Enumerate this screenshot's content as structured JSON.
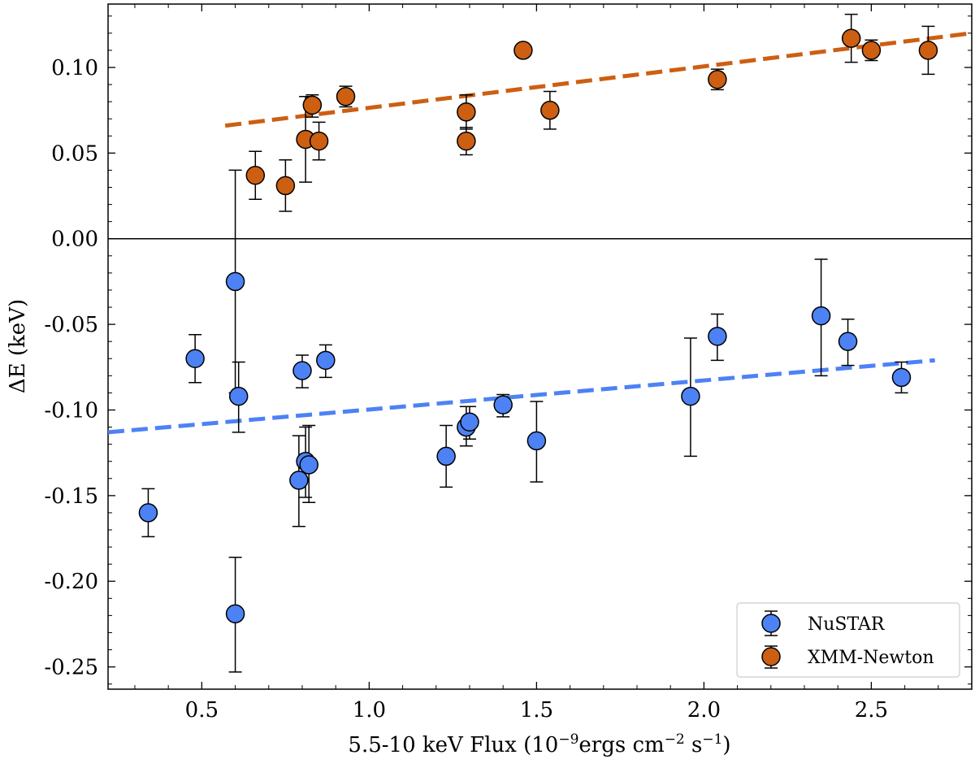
{
  "chart_data": {
    "type": "scatter",
    "title": "",
    "xlabel": "5.5-10 keV Flux (10",
    "xlabel_exp1": "−9",
    "xlabel_mid": "ergs cm",
    "xlabel_exp2": "−2",
    "xlabel_mid2": " s",
    "xlabel_exp3": "−1",
    "xlabel_end": ")",
    "ylabel": "ΔE (keV)",
    "xlim": [
      0.22,
      2.8
    ],
    "ylim": [
      -0.263,
      0.137
    ],
    "xticks": [
      0.5,
      1.0,
      1.5,
      2.0,
      2.5
    ],
    "xtick_labels": [
      "0.5",
      "1.0",
      "1.5",
      "2.0",
      "2.5"
    ],
    "yticks": [
      0.1,
      0.05,
      0.0,
      -0.05,
      -0.1,
      -0.15,
      -0.2,
      -0.25
    ],
    "ytick_labels": [
      "0.10",
      "0.05",
      "0.00",
      "-0.05",
      "-0.10",
      "-0.15",
      "-0.20",
      "-0.25"
    ],
    "zero_line": 0.0,
    "legend_position": "bottom-right",
    "series": [
      {
        "name": "NuSTAR",
        "color": "#4d82f5",
        "x": [
          0.34,
          0.48,
          0.6,
          0.61,
          0.6,
          0.79,
          0.8,
          0.81,
          0.82,
          0.87,
          1.23,
          1.29,
          1.3,
          1.4,
          1.5,
          1.96,
          2.04,
          2.35,
          2.43,
          2.59
        ],
        "y": [
          -0.16,
          -0.07,
          -0.025,
          -0.092,
          -0.219,
          -0.141,
          -0.077,
          -0.13,
          -0.132,
          -0.071,
          -0.127,
          -0.11,
          -0.107,
          -0.097,
          -0.118,
          -0.092,
          -0.057,
          -0.045,
          -0.06,
          -0.081
        ],
        "yerr_low": [
          0.014,
          0.014,
          0.065,
          0.021,
          0.034,
          0.027,
          0.01,
          0.021,
          0.022,
          0.01,
          0.018,
          0.011,
          0.01,
          0.007,
          0.024,
          0.035,
          0.014,
          0.035,
          0.014,
          0.009
        ],
        "yerr_high": [
          0.014,
          0.014,
          0.065,
          0.02,
          0.033,
          0.026,
          0.009,
          0.02,
          0.023,
          0.009,
          0.018,
          0.012,
          0.009,
          0.006,
          0.023,
          0.034,
          0.013,
          0.033,
          0.013,
          0.009
        ]
      },
      {
        "name": "XMM-Newton",
        "color": "#cc5f12",
        "x": [
          0.66,
          0.75,
          0.81,
          0.83,
          0.85,
          0.93,
          1.29,
          1.29,
          1.46,
          1.54,
          2.04,
          2.44,
          2.5,
          2.67
        ],
        "y": [
          0.037,
          0.031,
          0.058,
          0.078,
          0.057,
          0.083,
          0.057,
          0.074,
          0.11,
          0.075,
          0.093,
          0.117,
          0.11,
          0.11
        ],
        "yerr_low": [
          0.014,
          0.015,
          0.025,
          0.007,
          0.011,
          0.006,
          0.008,
          0.01,
          0.003,
          0.011,
          0.006,
          0.014,
          0.006,
          0.014
        ],
        "yerr_high": [
          0.014,
          0.015,
          0.025,
          0.006,
          0.011,
          0.006,
          0.008,
          0.01,
          0.003,
          0.011,
          0.006,
          0.014,
          0.006,
          0.014
        ]
      }
    ],
    "fit_lines": [
      {
        "name": "NuSTAR fit",
        "color": "#4d82f5",
        "x": [
          0.22,
          2.69
        ],
        "y": [
          -0.113,
          -0.071
        ]
      },
      {
        "name": "XMM-Newton fit",
        "color": "#cc5f12",
        "x": [
          0.57,
          2.8
        ],
        "y": [
          0.066,
          0.12
        ]
      }
    ]
  }
}
